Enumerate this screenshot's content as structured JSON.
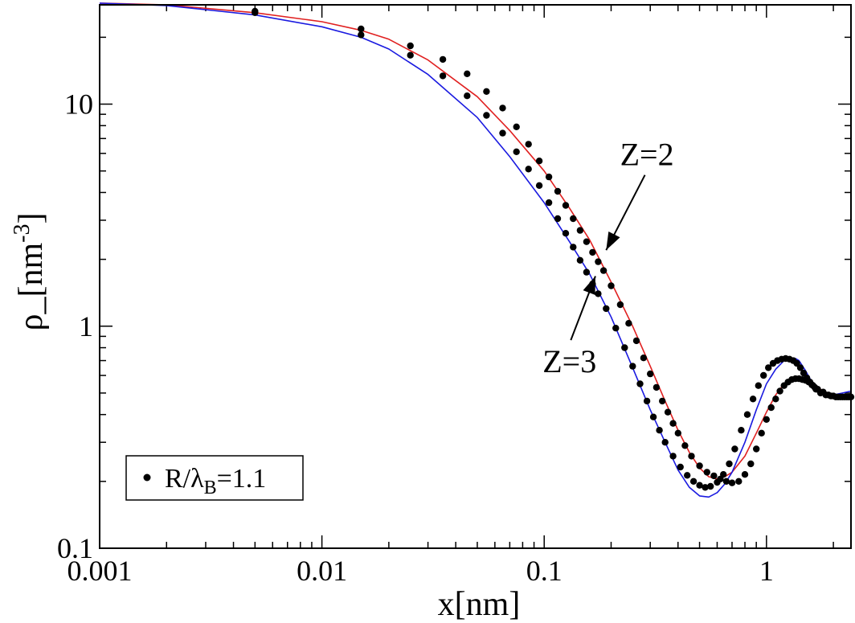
{
  "chart_data": {
    "type": "scatter",
    "xlabel": "x[nm]",
    "ylabel": {
      "base": "ρ_[nm",
      "sup": "-3",
      "close": "]"
    },
    "x_scale": "log",
    "y_scale": "log",
    "xlim": [
      0.001,
      2.4
    ],
    "ylim": [
      0.1,
      28
    ],
    "x_ticks": [
      {
        "value": 0.001,
        "label": "0.001"
      },
      {
        "value": 0.01,
        "label": "0.01"
      },
      {
        "value": 0.1,
        "label": "0.1"
      },
      {
        "value": 1,
        "label": "1"
      }
    ],
    "y_ticks": [
      {
        "value": 0.1,
        "label": "0.1"
      },
      {
        "value": 1,
        "label": "1"
      },
      {
        "value": 10,
        "label": "10"
      }
    ],
    "grid": false,
    "legend": {
      "position": "bottom-left",
      "entries": [
        {
          "marker": "dot",
          "label": {
            "base": "R/λ",
            "sub": "B",
            "rest": "=1.1"
          }
        }
      ]
    },
    "colors": {
      "line_Z2": "#e02020",
      "line_Z3": "#1a1ae0",
      "points": "#000000"
    },
    "annotations": [
      {
        "text": "Z=2",
        "text_at": [
          0.29,
          5.3
        ],
        "arrow_to": [
          0.19,
          2.2
        ]
      },
      {
        "text": "Z=3",
        "text_at": [
          0.13,
          0.62
        ],
        "arrow_to": [
          0.17,
          1.68
        ]
      }
    ],
    "series": [
      {
        "label": "Z=2",
        "color": "#e02020",
        "kind": "line",
        "x": [
          0.001,
          0.002,
          0.005,
          0.01,
          0.015,
          0.02,
          0.03,
          0.05,
          0.07,
          0.1,
          0.13,
          0.16,
          0.2,
          0.25,
          0.3,
          0.35,
          0.4,
          0.45,
          0.5,
          0.55,
          0.6,
          0.65,
          0.7,
          0.8,
          0.9,
          1.0,
          1.1,
          1.2,
          1.3,
          1.4,
          1.5,
          1.6,
          1.7,
          1.8,
          2.0,
          2.2,
          2.4
        ],
        "y": [
          28.5,
          28.0,
          25.8,
          23.5,
          21.5,
          19.6,
          15.8,
          10.8,
          7.6,
          5.0,
          3.4,
          2.45,
          1.58,
          1.0,
          0.66,
          0.46,
          0.34,
          0.27,
          0.23,
          0.21,
          0.205,
          0.21,
          0.22,
          0.26,
          0.33,
          0.41,
          0.49,
          0.55,
          0.58,
          0.585,
          0.575,
          0.555,
          0.53,
          0.51,
          0.49,
          0.48,
          0.48
        ]
      },
      {
        "label": "Z=3",
        "color": "#1a1ae0",
        "kind": "line",
        "x": [
          0.001,
          0.002,
          0.005,
          0.01,
          0.015,
          0.02,
          0.03,
          0.05,
          0.07,
          0.1,
          0.13,
          0.16,
          0.2,
          0.25,
          0.3,
          0.35,
          0.4,
          0.45,
          0.5,
          0.55,
          0.6,
          0.65,
          0.7,
          0.8,
          0.9,
          1.0,
          1.1,
          1.2,
          1.3,
          1.35,
          1.4,
          1.5,
          1.6,
          1.7,
          1.8,
          2.0,
          2.2,
          2.4
        ],
        "y": [
          28.5,
          27.8,
          25.2,
          22.3,
          20.0,
          17.7,
          13.6,
          8.7,
          5.8,
          3.6,
          2.4,
          1.72,
          1.1,
          0.65,
          0.42,
          0.3,
          0.225,
          0.188,
          0.172,
          0.17,
          0.178,
          0.195,
          0.22,
          0.3,
          0.42,
          0.55,
          0.64,
          0.7,
          0.72,
          0.715,
          0.7,
          0.63,
          0.56,
          0.52,
          0.5,
          0.49,
          0.5,
          0.51
        ]
      },
      {
        "label": "R/λB=1.1",
        "color": "#000000",
        "kind": "points",
        "curves": [
          {
            "x": [
              0.005,
              0.015,
              0.025,
              0.035,
              0.045,
              0.055,
              0.065,
              0.075,
              0.085,
              0.095,
              0.105,
              0.115,
              0.125,
              0.135,
              0.145,
              0.155,
              0.165,
              0.175,
              0.185,
              0.2,
              0.22,
              0.24,
              0.26,
              0.28,
              0.3,
              0.32,
              0.34,
              0.36,
              0.38,
              0.4,
              0.43,
              0.46,
              0.5,
              0.54,
              0.58,
              0.62,
              0.66,
              0.7,
              0.75,
              0.8,
              0.85,
              0.9,
              0.95,
              1.0,
              1.05,
              1.1,
              1.15,
              1.2,
              1.25,
              1.3,
              1.35,
              1.4,
              1.45,
              1.5,
              1.55,
              1.6,
              1.65,
              1.7,
              1.8,
              1.9,
              2.0,
              2.1,
              2.2,
              2.3,
              2.4
            ],
            "y": [
              25.8,
              21.8,
              18.3,
              15.9,
              13.7,
              11.4,
              9.6,
              7.9,
              6.6,
              5.55,
              4.7,
              4.05,
              3.5,
              3.05,
              2.7,
              2.4,
              2.15,
              1.95,
              1.78,
              1.52,
              1.25,
              1.03,
              0.86,
              0.72,
              0.61,
              0.53,
              0.46,
              0.41,
              0.365,
              0.33,
              0.29,
              0.26,
              0.235,
              0.22,
              0.212,
              0.205,
              0.2,
              0.197,
              0.2,
              0.215,
              0.24,
              0.28,
              0.33,
              0.38,
              0.43,
              0.47,
              0.51,
              0.54,
              0.56,
              0.575,
              0.58,
              0.58,
              0.575,
              0.57,
              0.56,
              0.545,
              0.53,
              0.52,
              0.505,
              0.49,
              0.485,
              0.48,
              0.48,
              0.48,
              0.48
            ]
          },
          {
            "x": [
              0.005,
              0.015,
              0.025,
              0.035,
              0.045,
              0.055,
              0.065,
              0.075,
              0.085,
              0.095,
              0.105,
              0.115,
              0.125,
              0.135,
              0.145,
              0.155,
              0.165,
              0.175,
              0.19,
              0.21,
              0.23,
              0.25,
              0.27,
              0.29,
              0.31,
              0.33,
              0.35,
              0.38,
              0.41,
              0.44,
              0.47,
              0.5,
              0.53,
              0.56,
              0.6,
              0.64,
              0.68,
              0.72,
              0.77,
              0.82,
              0.87,
              0.92,
              0.97,
              1.02,
              1.07,
              1.12,
              1.17,
              1.22,
              1.27,
              1.32,
              1.37,
              1.42,
              1.47,
              1.52,
              1.57,
              1.62,
              1.67,
              1.75,
              1.85,
              1.95,
              2.05,
              2.15,
              2.25,
              2.35
            ],
            "y": [
              26.2,
              20.5,
              16.6,
              13.4,
              10.9,
              8.9,
              7.4,
              6.1,
              5.1,
              4.3,
              3.6,
              3.05,
              2.62,
              2.27,
              1.98,
              1.75,
              1.55,
              1.4,
              1.2,
              0.98,
              0.8,
              0.66,
              0.55,
              0.46,
              0.39,
              0.34,
              0.3,
              0.26,
              0.232,
              0.213,
              0.2,
              0.192,
              0.188,
              0.19,
              0.198,
              0.215,
              0.24,
              0.28,
              0.34,
              0.4,
              0.47,
              0.54,
              0.6,
              0.65,
              0.68,
              0.7,
              0.71,
              0.715,
              0.71,
              0.7,
              0.68,
              0.65,
              0.615,
              0.585,
              0.56,
              0.54,
              0.52,
              0.5,
              0.49,
              0.485,
              0.48,
              0.48,
              0.48,
              0.48
            ]
          }
        ]
      }
    ]
  }
}
